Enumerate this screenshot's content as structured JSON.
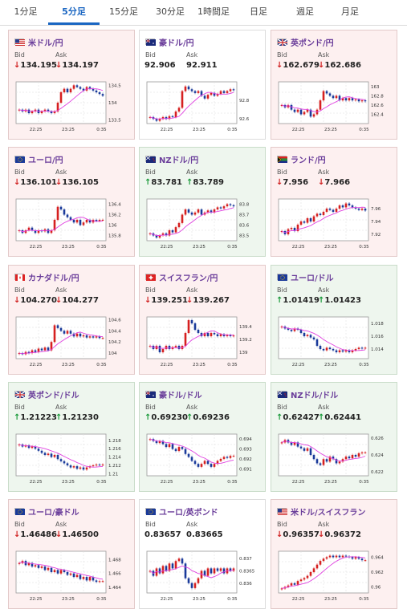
{
  "tabs": [
    {
      "label": "1分足",
      "active": false
    },
    {
      "label": "5分足",
      "active": true
    },
    {
      "label": "15分足",
      "active": false
    },
    {
      "label": "30分足",
      "active": false
    },
    {
      "label": "1時間足",
      "active": false
    },
    {
      "label": "日足",
      "active": false
    },
    {
      "label": "週足",
      "active": false
    },
    {
      "label": "月足",
      "active": false
    }
  ],
  "labels": {
    "bid": "Bid",
    "ask": "Ask"
  },
  "arrows": {
    "down": "↓",
    "up": "↑"
  },
  "colors": {
    "down": "#d02020",
    "up": "#1a9a3a",
    "candle_up": "#d62020",
    "candle_down": "#1a3a9a",
    "ma": "#e040e0",
    "accent": "#1a66c2"
  },
  "pairs": [
    {
      "title": "米ドル/円",
      "flag": "us-flag",
      "bid": "134.195",
      "ask": "134.197",
      "bid_dir": "down",
      "ask_dir": "down",
      "trend": "down",
      "chart_data": {
        "type": "candlestick",
        "x_ticks": [
          "22:25",
          "23:25",
          "0:35"
        ],
        "y_ticks": [
          "134.5",
          "134",
          "133.5"
        ],
        "ylim": [
          133.4,
          134.6
        ],
        "close": [
          133.8,
          133.75,
          133.8,
          133.7,
          133.75,
          133.8,
          133.7,
          133.75,
          133.8,
          133.75,
          133.7,
          133.75,
          134.0,
          134.3,
          134.4,
          134.3,
          134.4,
          134.5,
          134.45,
          134.4,
          134.35,
          134.45,
          134.4,
          134.35,
          134.3,
          134.25,
          134.2
        ]
      }
    },
    {
      "title": "豪ドル/円",
      "flag": "au-flag",
      "bid": "92.906",
      "ask": "92.911",
      "bid_dir": "flat",
      "ask_dir": "flat",
      "trend": "flat",
      "chart_data": {
        "type": "candlestick",
        "x_ticks": [
          "22:25",
          "23:25",
          "0:35"
        ],
        "y_ticks": [
          "92.8",
          "92.6"
        ],
        "ylim": [
          92.55,
          93.0
        ],
        "close": [
          92.62,
          92.6,
          92.58,
          92.6,
          92.62,
          92.6,
          92.63,
          92.62,
          92.68,
          92.72,
          92.9,
          92.95,
          92.92,
          92.9,
          92.88,
          92.9,
          92.85,
          92.82,
          92.86,
          92.88,
          92.85,
          92.87,
          92.9,
          92.88,
          92.9,
          92.92,
          92.91
        ]
      }
    },
    {
      "title": "英ポンド/円",
      "flag": "uk-flag",
      "bid": "162.679",
      "ask": "162.686",
      "bid_dir": "down",
      "ask_dir": "down",
      "trend": "down",
      "chart_data": {
        "type": "candlestick",
        "x_ticks": [
          "22:25",
          "23:25",
          "0:35"
        ],
        "y_ticks": [
          "163",
          "162.8",
          "162.6",
          "162.4"
        ],
        "ylim": [
          162.2,
          163.1
        ],
        "close": [
          162.6,
          162.55,
          162.6,
          162.5,
          162.45,
          162.5,
          162.4,
          162.45,
          162.5,
          162.35,
          162.4,
          162.5,
          162.7,
          162.9,
          162.85,
          162.8,
          162.75,
          162.8,
          162.7,
          162.75,
          162.7,
          162.75,
          162.7,
          162.72,
          162.68,
          162.7,
          162.68
        ]
      }
    },
    {
      "title": "ユーロ/円",
      "flag": "eu-flag",
      "bid": "136.101",
      "ask": "136.105",
      "bid_dir": "down",
      "ask_dir": "down",
      "trend": "down",
      "chart_data": {
        "type": "candlestick",
        "x_ticks": [
          "22:25",
          "23:25",
          "0:35"
        ],
        "y_ticks": [
          "136.4",
          "136.2",
          "136",
          "135.8"
        ],
        "ylim": [
          135.7,
          136.5
        ],
        "close": [
          135.9,
          135.85,
          135.9,
          135.95,
          135.9,
          135.85,
          135.9,
          135.88,
          135.92,
          135.85,
          135.9,
          136.1,
          136.35,
          136.3,
          136.2,
          136.15,
          136.1,
          136.05,
          136.1,
          136.0,
          136.05,
          136.1,
          136.05,
          136.1,
          136.08,
          136.1,
          136.1
        ]
      }
    },
    {
      "title": "NZドル/円",
      "flag": "nz-flag",
      "bid": "83.781",
      "ask": "83.789",
      "bid_dir": "up",
      "ask_dir": "up",
      "trend": "up",
      "chart_data": {
        "type": "candlestick",
        "x_ticks": [
          "22:25",
          "23:25",
          "0:35"
        ],
        "y_ticks": [
          "83.8",
          "83.7",
          "83.6",
          "83.5"
        ],
        "ylim": [
          83.45,
          83.85
        ],
        "close": [
          83.52,
          83.5,
          83.48,
          83.5,
          83.52,
          83.5,
          83.55,
          83.53,
          83.58,
          83.62,
          83.7,
          83.75,
          83.72,
          83.7,
          83.72,
          83.75,
          83.7,
          83.72,
          83.74,
          83.72,
          83.75,
          83.77,
          83.76,
          83.78,
          83.8,
          83.79,
          83.78
        ]
      }
    },
    {
      "title": "ランド/円",
      "flag": "za-flag",
      "bid": "7.956",
      "ask": "7.966",
      "bid_dir": "down",
      "ask_dir": "down",
      "trend": "down",
      "chart_data": {
        "type": "candlestick",
        "x_ticks": [
          "22:25",
          "23:25",
          "0:35"
        ],
        "y_ticks": [
          "7.96",
          "7.94",
          "7.92"
        ],
        "ylim": [
          7.91,
          7.975
        ],
        "close": [
          7.925,
          7.92,
          7.928,
          7.93,
          7.925,
          7.935,
          7.94,
          7.938,
          7.945,
          7.94,
          7.948,
          7.952,
          7.95,
          7.955,
          7.96,
          7.958,
          7.955,
          7.96,
          7.965,
          7.962,
          7.968,
          7.965,
          7.962,
          7.96,
          7.958,
          7.96,
          7.957
        ]
      }
    },
    {
      "title": "カナダドル/円",
      "flag": "ca-flag",
      "bid": "104.270",
      "ask": "104.277",
      "bid_dir": "down",
      "ask_dir": "down",
      "trend": "down",
      "chart_data": {
        "type": "candlestick",
        "x_ticks": [
          "22:25",
          "23:25",
          "0:35"
        ],
        "y_ticks": [
          "104.6",
          "104.4",
          "104.2",
          "104"
        ],
        "ylim": [
          103.9,
          104.65
        ],
        "close": [
          104.0,
          103.98,
          104.02,
          104.0,
          104.05,
          104.02,
          104.08,
          104.05,
          104.1,
          104.05,
          104.2,
          104.5,
          104.45,
          104.4,
          104.35,
          104.4,
          104.35,
          104.3,
          104.35,
          104.3,
          104.32,
          104.28,
          104.3,
          104.28,
          104.3,
          104.27,
          104.27
        ]
      }
    },
    {
      "title": "スイスフラン/円",
      "flag": "ch-flag",
      "bid": "139.251",
      "ask": "139.267",
      "bid_dir": "down",
      "ask_dir": "down",
      "trend": "down",
      "chart_data": {
        "type": "candlestick",
        "x_ticks": [
          "22:25",
          "23:25",
          "0:35"
        ],
        "y_ticks": [
          "139.4",
          "139.2",
          "139"
        ],
        "ylim": [
          138.9,
          139.55
        ],
        "close": [
          139.1,
          139.05,
          139.1,
          139.0,
          139.05,
          139.1,
          139.05,
          139.08,
          139.1,
          139.05,
          139.1,
          139.3,
          139.5,
          139.45,
          139.35,
          139.3,
          139.25,
          139.3,
          139.25,
          139.3,
          139.28,
          139.25,
          139.28,
          139.25,
          139.27,
          139.25,
          139.26
        ]
      }
    },
    {
      "title": "ユーロ/ドル",
      "flag": "eu-flag",
      "bid": "1.01419",
      "ask": "1.01423",
      "bid_dir": "up",
      "ask_dir": "up",
      "trend": "up",
      "chart_data": {
        "type": "candlestick",
        "x_ticks": [
          "22:25",
          "23:25",
          "0:35"
        ],
        "y_ticks": [
          "1.018",
          "1.016",
          "1.014"
        ],
        "ylim": [
          1.0125,
          1.019
        ],
        "close": [
          1.0175,
          1.0172,
          1.017,
          1.0168,
          1.0172,
          1.017,
          1.0165,
          1.016,
          1.0162,
          1.0158,
          1.0155,
          1.0145,
          1.014,
          1.0138,
          1.0142,
          1.014,
          1.0138,
          1.0135,
          1.0138,
          1.0136,
          1.0138,
          1.0135,
          1.0138,
          1.014,
          1.0142,
          1.0141,
          1.0142
        ]
      }
    },
    {
      "title": "英ポンド/ドル",
      "flag": "uk-flag",
      "bid": "1.21223",
      "ask": "1.21230",
      "bid_dir": "up",
      "ask_dir": "up",
      "trend": "up",
      "chart_data": {
        "type": "candlestick",
        "x_ticks": [
          "22:25",
          "23:25",
          "0:35"
        ],
        "y_ticks": [
          "1.218",
          "1.216",
          "1.214",
          "1.212",
          "1.21"
        ],
        "ylim": [
          1.2095,
          1.2195
        ],
        "close": [
          1.217,
          1.2165,
          1.2168,
          1.2162,
          1.2165,
          1.216,
          1.2155,
          1.215,
          1.2145,
          1.2148,
          1.214,
          1.2145,
          1.2135,
          1.213,
          1.2125,
          1.212,
          1.2115,
          1.2118,
          1.2112,
          1.2115,
          1.211,
          1.2115,
          1.2118,
          1.212,
          1.2122,
          1.2121,
          1.2122
        ]
      }
    },
    {
      "title": "豪ドル/ドル",
      "flag": "au-flag",
      "bid": "0.69230",
      "ask": "0.69236",
      "bid_dir": "up",
      "ask_dir": "up",
      "trend": "up",
      "chart_data": {
        "type": "candlestick",
        "x_ticks": [
          "22:25",
          "23:25",
          "0:35"
        ],
        "y_ticks": [
          "0.694",
          "0.693",
          "0.692",
          "0.691"
        ],
        "ylim": [
          0.6903,
          0.6945
        ],
        "close": [
          0.694,
          0.6938,
          0.6936,
          0.6938,
          0.6935,
          0.6932,
          0.6935,
          0.693,
          0.6928,
          0.6932,
          0.693,
          0.6925,
          0.6922,
          0.6918,
          0.6915,
          0.6912,
          0.6915,
          0.6918,
          0.6915,
          0.6912,
          0.6915,
          0.6918,
          0.692,
          0.6922,
          0.6921,
          0.6923,
          0.6923
        ]
      }
    },
    {
      "title": "NZドル/ドル",
      "flag": "nz-flag",
      "bid": "0.62427",
      "ask": "0.62441",
      "bid_dir": "up",
      "ask_dir": "up",
      "trend": "up",
      "chart_data": {
        "type": "candlestick",
        "x_ticks": [
          "22:25",
          "23:25",
          "0:35"
        ],
        "y_ticks": [
          "0.626",
          "0.624",
          "0.622"
        ],
        "ylim": [
          0.6215,
          0.6265
        ],
        "close": [
          0.6255,
          0.6258,
          0.6255,
          0.6252,
          0.6255,
          0.625,
          0.6248,
          0.6245,
          0.6248,
          0.624,
          0.6235,
          0.623,
          0.6228,
          0.6235,
          0.6232,
          0.6238,
          0.6235,
          0.623,
          0.6232,
          0.6235,
          0.6238,
          0.6236,
          0.624,
          0.6238,
          0.6242,
          0.6243,
          0.6243
        ]
      }
    },
    {
      "title": "ユーロ/豪ドル",
      "flag": "eu-flag",
      "bid": "1.46486",
      "ask": "1.46500",
      "bid_dir": "down",
      "ask_dir": "down",
      "trend": "down",
      "chart_data": {
        "type": "candlestick",
        "x_ticks": [
          "22:25",
          "23:25",
          "0:35"
        ],
        "y_ticks": [
          "1.468",
          "1.466",
          "1.464"
        ],
        "ylim": [
          1.4632,
          1.4692
        ],
        "close": [
          1.4675,
          1.4678,
          1.4672,
          1.4675,
          1.467,
          1.4672,
          1.4668,
          1.467,
          1.4665,
          1.4668,
          1.4662,
          1.4665,
          1.466,
          1.4665,
          1.4662,
          1.4658,
          1.466,
          1.4655,
          1.4658,
          1.4652,
          1.4655,
          1.465,
          1.4655,
          1.465,
          1.4648,
          1.4649,
          1.4649
        ]
      }
    },
    {
      "title": "ユーロ/英ポンド",
      "flag": "eu-flag",
      "bid": "0.83657",
      "ask": "0.83665",
      "bid_dir": "flat",
      "ask_dir": "flat",
      "trend": "flat",
      "chart_data": {
        "type": "candlestick",
        "x_ticks": [
          "22:25",
          "23:25",
          "0:35"
        ],
        "y_ticks": [
          "0.837",
          "0.8365",
          "0.836"
        ],
        "ylim": [
          0.8356,
          0.8373
        ],
        "close": [
          0.8365,
          0.8363,
          0.8366,
          0.8364,
          0.8367,
          0.8365,
          0.8368,
          0.8366,
          0.8369,
          0.837,
          0.8368,
          0.8362,
          0.836,
          0.8358,
          0.836,
          0.8362,
          0.8365,
          0.8363,
          0.8366,
          0.8364,
          0.8366,
          0.8365,
          0.8366,
          0.8364,
          0.8366,
          0.8365,
          0.8366
        ]
      }
    },
    {
      "title": "米ドル/スイスフラン",
      "flag": "us-flag",
      "bid": "0.96357",
      "ask": "0.96372",
      "bid_dir": "down",
      "ask_dir": "down",
      "trend": "down",
      "chart_data": {
        "type": "candlestick",
        "x_ticks": [
          "22:25",
          "23:25",
          "0:35"
        ],
        "y_ticks": [
          "0.964",
          "0.962",
          "0.96"
        ],
        "ylim": [
          0.9592,
          0.9648
        ],
        "close": [
          0.9598,
          0.96,
          0.9602,
          0.9605,
          0.9603,
          0.9608,
          0.961,
          0.9612,
          0.9615,
          0.962,
          0.9625,
          0.963,
          0.9635,
          0.9638,
          0.964,
          0.9642,
          0.964,
          0.9642,
          0.964,
          0.9642,
          0.9641,
          0.964,
          0.9638,
          0.964,
          0.9638,
          0.9636,
          0.9636
        ]
      }
    }
  ]
}
